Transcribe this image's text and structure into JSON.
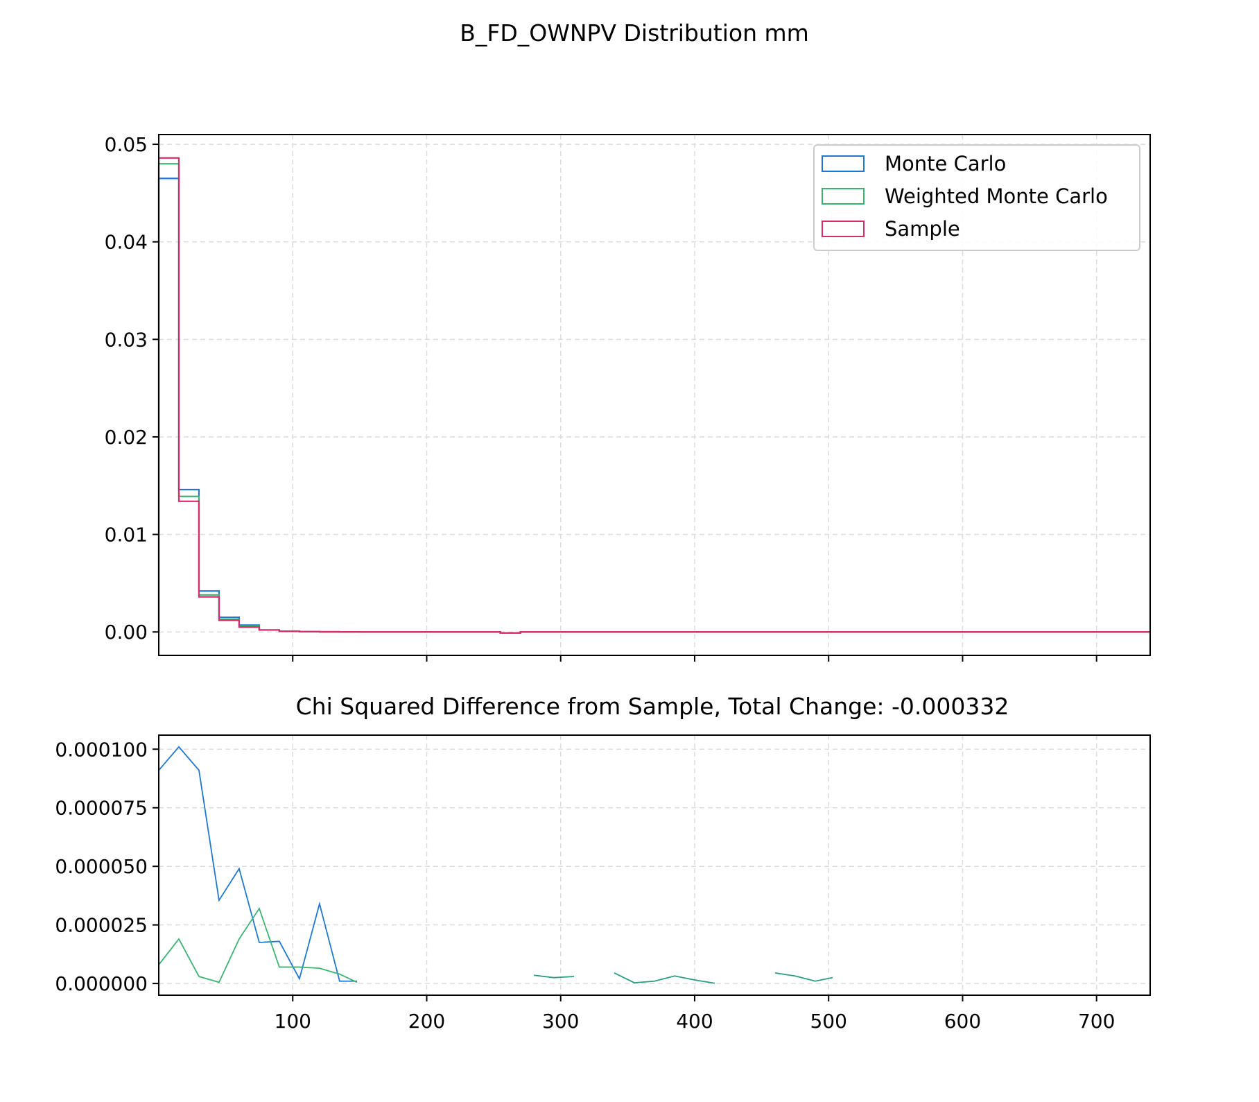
{
  "figure": {
    "title": "B_FD_OWNPV Distribution mm"
  },
  "chart_data": [
    {
      "type": "histogram-step",
      "title": "",
      "xlabel": "",
      "ylabel": "",
      "xlim": [
        0,
        740
      ],
      "ylim": [
        -0.0024,
        0.051
      ],
      "grid": true,
      "legend_position": "upper-right",
      "yticks": [
        "0.00",
        "0.01",
        "0.02",
        "0.03",
        "0.04",
        "0.05"
      ],
      "ytick_values": [
        0,
        0.01,
        0.02,
        0.03,
        0.04,
        0.05
      ],
      "bin_edges": [
        0,
        15,
        30,
        45,
        60,
        75,
        90,
        105,
        120,
        135,
        150,
        165,
        180,
        195,
        210,
        225,
        240,
        255,
        270,
        285,
        300,
        315,
        330,
        345,
        360,
        375,
        390,
        405,
        420,
        435,
        450,
        465,
        480,
        495,
        510,
        525,
        540,
        555,
        570,
        585,
        600,
        615,
        630,
        645,
        660,
        675,
        690,
        705,
        720,
        740
      ],
      "series": [
        {
          "name": "Monte Carlo",
          "color": "#1f77d0",
          "values": [
            0.0465,
            0.0146,
            0.0042,
            0.0015,
            0.0007,
            0.0002,
            8e-05,
            4e-05,
            2e-05,
            1e-05,
            0,
            0,
            0,
            0,
            0,
            0,
            0,
            -0.0001,
            0,
            0,
            0,
            0,
            0,
            0,
            0,
            0,
            0,
            0,
            0,
            0,
            0,
            0,
            0,
            0,
            0,
            0,
            0,
            0,
            0,
            0,
            0,
            0,
            0,
            0,
            0,
            0,
            0,
            0,
            0
          ]
        },
        {
          "name": "Weighted Monte Carlo",
          "color": "#3cb371",
          "values": [
            0.048,
            0.0139,
            0.0038,
            0.0013,
            0.0006,
            0.0002,
            8e-05,
            3e-05,
            2e-05,
            1e-05,
            0,
            0,
            0,
            0,
            0,
            0,
            0,
            -0.0001,
            0,
            0,
            0,
            0,
            0,
            0,
            0,
            0,
            0,
            0,
            0,
            0,
            0,
            0,
            0,
            0,
            0,
            0,
            0,
            0,
            0,
            0,
            0,
            0,
            0,
            0,
            0,
            0,
            0,
            0,
            0
          ]
        },
        {
          "name": "Sample",
          "color": "#d62d6a",
          "values": [
            0.0486,
            0.0134,
            0.0036,
            0.0012,
            0.0005,
            0.0002,
            7e-05,
            3e-05,
            1e-05,
            1e-05,
            0,
            0,
            0,
            0,
            0,
            0,
            0,
            -0.0001,
            0,
            0,
            0,
            0,
            0,
            0,
            0,
            0,
            0,
            0,
            0,
            0,
            0,
            0,
            0,
            0,
            0,
            0,
            0,
            0,
            0,
            0,
            0,
            0,
            0,
            0,
            0,
            0,
            0,
            0,
            0
          ]
        }
      ]
    },
    {
      "type": "line",
      "title": "Chi Squared Difference from Sample, Total Change: -0.000332",
      "xlabel": "",
      "ylabel": "",
      "xlim": [
        0,
        740
      ],
      "ylim": [
        -5e-06,
        0.000106
      ],
      "grid": true,
      "xticks": [
        "100",
        "200",
        "300",
        "400",
        "500",
        "600",
        "700"
      ],
      "xtick_values": [
        100,
        200,
        300,
        400,
        500,
        600,
        700
      ],
      "yticks": [
        "0.000000",
        "0.000025",
        "0.000050",
        "0.000075",
        "0.000100"
      ],
      "ytick_values": [
        0,
        2.5e-05,
        5e-05,
        7.5e-05,
        0.0001
      ],
      "series": [
        {
          "name": "",
          "color": "#1f77d0",
          "segments": [
            [
              [
                0,
                9.1e-05
              ],
              [
                15,
                0.000101
              ],
              [
                30,
                9.1e-05
              ],
              [
                45,
                3.55e-05
              ],
              [
                60,
                4.9e-05
              ],
              [
                75,
                1.75e-05
              ],
              [
                90,
                1.8e-05
              ],
              [
                105,
                2e-06
              ],
              [
                120,
                3.4e-05
              ],
              [
                135,
                1e-06
              ],
              [
                148,
                1e-06
              ]
            ]
          ]
        },
        {
          "name": "",
          "color": "#3cb371",
          "segments": [
            [
              [
                0,
                8e-06
              ],
              [
                15,
                1.9e-05
              ],
              [
                30,
                3e-06
              ],
              [
                45,
                5e-07
              ],
              [
                60,
                1.9e-05
              ],
              [
                75,
                3.2e-05
              ],
              [
                90,
                7e-06
              ],
              [
                105,
                7e-06
              ],
              [
                120,
                6.5e-06
              ],
              [
                135,
                4e-06
              ],
              [
                148,
                5e-07
              ]
            ]
          ]
        },
        {
          "name": "",
          "color": "#2a9d7f",
          "segments": [
            [
              [
                280,
                3.5e-06
              ],
              [
                295,
                2.5e-06
              ],
              [
                310,
                3e-06
              ]
            ],
            [
              [
                340,
                4.5e-06
              ],
              [
                355,
                3e-07
              ],
              [
                370,
                1e-06
              ],
              [
                385,
                3.2e-06
              ],
              [
                400,
                1.5e-06
              ],
              [
                415,
                1e-07
              ]
            ],
            [
              [
                460,
                4.5e-06
              ],
              [
                475,
                3.2e-06
              ],
              [
                490,
                1e-06
              ],
              [
                503,
                2.5e-06
              ]
            ]
          ]
        }
      ]
    }
  ]
}
